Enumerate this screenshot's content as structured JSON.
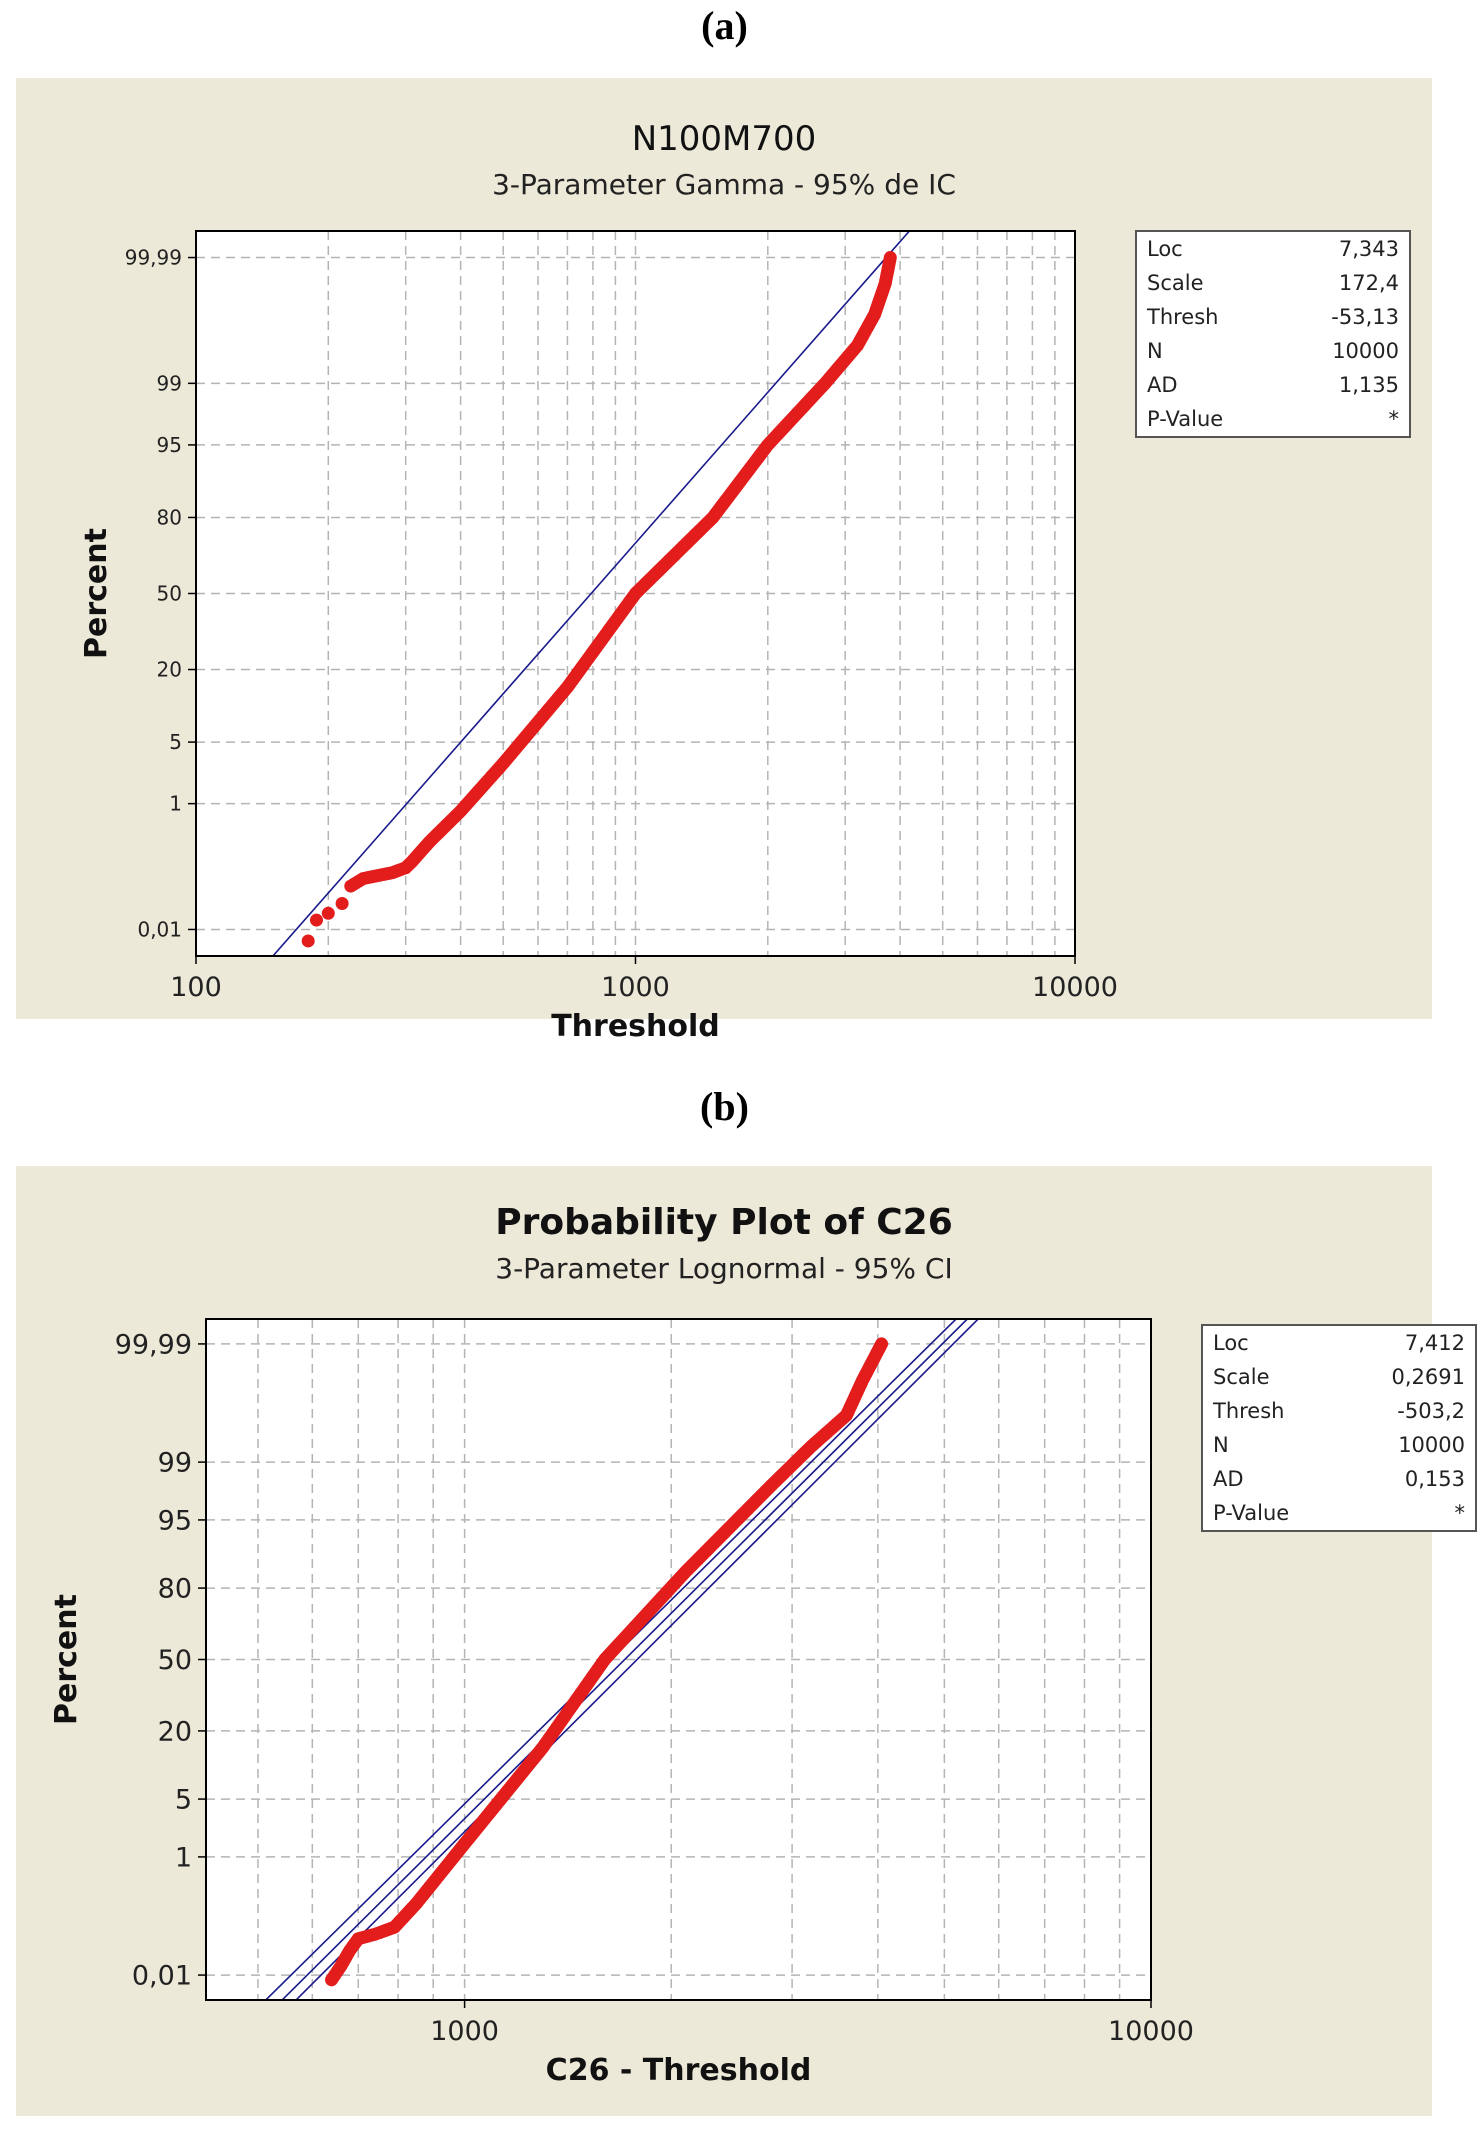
{
  "panels": [
    {
      "label_open": "(",
      "label_letter": "a",
      "label_close": ")",
      "stats": [
        {
          "name": "Loc",
          "value": "7,343"
        },
        {
          "name": "Scale",
          "value": "172,4"
        },
        {
          "name": "Thresh",
          "value": "-53,13"
        },
        {
          "name": "N",
          "value": "10000"
        },
        {
          "name": "AD",
          "value": "1,135"
        },
        {
          "name": "P-Value",
          "value": "*"
        }
      ]
    },
    {
      "label_open": "(",
      "label_letter": "b",
      "label_close": ")",
      "stats": [
        {
          "name": "Loc",
          "value": "7,412"
        },
        {
          "name": "Scale",
          "value": "0,2691"
        },
        {
          "name": "Thresh",
          "value": "-503,2"
        },
        {
          "name": "N",
          "value": "10000"
        },
        {
          "name": "AD",
          "value": "0,153"
        },
        {
          "name": "P-Value",
          "value": "*"
        }
      ]
    }
  ],
  "chart_data": [
    {
      "type": "scatter",
      "title": "N100M700",
      "subtitle": "3-Parameter Gamma - 95% de IC",
      "xlabel": "Threshold",
      "ylabel": "Percent",
      "x_scale": "log",
      "xlim": [
        100,
        10000
      ],
      "x_ticks": [
        100,
        1000,
        10000
      ],
      "x_tick_labels": [
        "100",
        "1000",
        "10000"
      ],
      "y_scale": "probability",
      "ylim": [
        0.003,
        99.997
      ],
      "y_ticks": [
        0.01,
        1,
        5,
        20,
        50,
        80,
        95,
        99,
        99.99
      ],
      "y_tick_labels": [
        "0,01",
        "1",
        "5",
        "20",
        "50",
        "80",
        "95",
        "99",
        "99,99"
      ],
      "grid": true,
      "marker_color": "#e31c1c",
      "fit_color": "#1a1a8c",
      "points": [
        [
          180,
          0.006
        ],
        [
          188,
          0.015
        ],
        [
          200,
          0.02
        ],
        [
          215,
          0.03
        ],
        [
          225,
          0.06
        ],
        [
          240,
          0.08
        ],
        [
          260,
          0.09
        ],
        [
          280,
          0.1
        ],
        [
          300,
          0.12
        ],
        [
          310,
          0.15
        ],
        [
          340,
          0.3
        ],
        [
          400,
          0.8
        ],
        [
          500,
          3
        ],
        [
          700,
          15
        ],
        [
          1000,
          50
        ],
        [
          1500,
          80
        ],
        [
          2000,
          95
        ],
        [
          2700,
          99
        ],
        [
          3200,
          99.7
        ],
        [
          3500,
          99.9
        ],
        [
          3700,
          99.97
        ],
        [
          3800,
          99.99
        ]
      ],
      "fit_line": [
        [
          140,
          0.0015
        ],
        [
          4200,
          99.997
        ]
      ]
    },
    {
      "type": "scatter",
      "title": "Probability Plot of C26",
      "subtitle": "3-Parameter Lognormal - 95% CI",
      "xlabel": "C26 - Threshold",
      "ylabel": "Percent",
      "x_scale": "log",
      "xlim": [
        420,
        10000
      ],
      "x_ticks": [
        1000,
        10000
      ],
      "x_tick_labels": [
        "1000",
        "10000"
      ],
      "y_scale": "probability",
      "ylim": [
        0.003,
        99.997
      ],
      "y_ticks": [
        0.01,
        1,
        5,
        20,
        50,
        80,
        95,
        99,
        99.99
      ],
      "y_tick_labels": [
        "0,01",
        "1",
        "5",
        "20",
        "50",
        "80",
        "95",
        "99",
        "99,99"
      ],
      "grid": true,
      "marker_color": "#e31c1c",
      "fit_color": "#1a1a8c",
      "points": [
        [
          640,
          0.008
        ],
        [
          660,
          0.015
        ],
        [
          680,
          0.03
        ],
        [
          700,
          0.05
        ],
        [
          740,
          0.06
        ],
        [
          790,
          0.08
        ],
        [
          850,
          0.2
        ],
        [
          1000,
          1.5
        ],
        [
          1300,
          15
        ],
        [
          1600,
          50
        ],
        [
          2100,
          85
        ],
        [
          2800,
          98
        ],
        [
          3200,
          99.4
        ],
        [
          3600,
          99.8
        ],
        [
          3800,
          99.95
        ],
        [
          4050,
          99.99
        ]
      ],
      "fit_line": [
        [
          520,
          0.0016
        ],
        [
          5400,
          99.997
        ]
      ],
      "ci_lines": [
        [
          [
            490,
            0.0015
          ],
          [
            5200,
            99.997
          ]
        ],
        [
          [
            545,
            0.0016
          ],
          [
            5600,
            99.997
          ]
        ]
      ]
    }
  ]
}
